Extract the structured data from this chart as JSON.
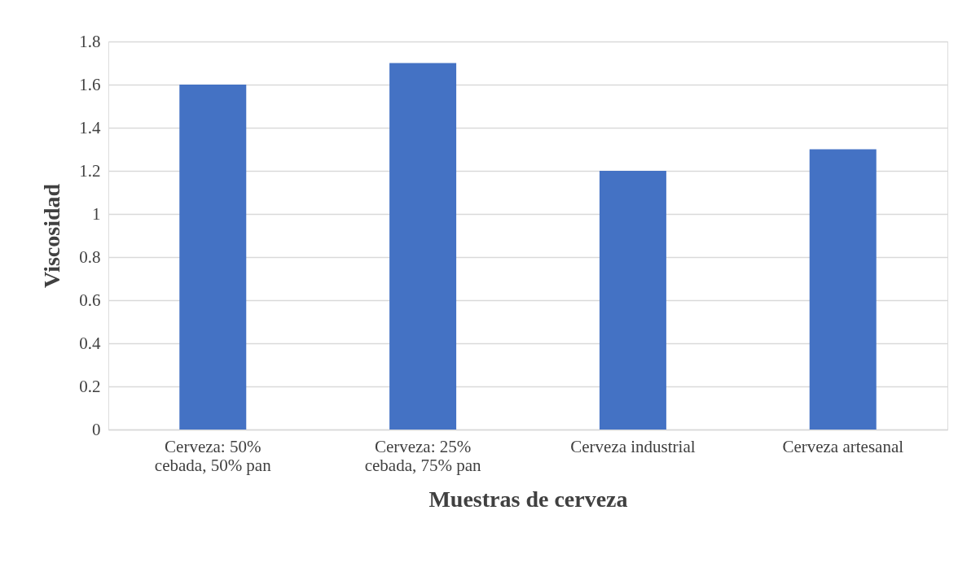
{
  "chart_data": {
    "type": "bar",
    "xlabel": "Muestras de cerveza",
    "ylabel": "Viscosidad",
    "categories": [
      "Cerveza: 50% cebada, 50% pan",
      "Cerveza: 25% cebada, 75% pan",
      "Cerveza industrial",
      "Cerveza artesanal"
    ],
    "values": [
      1.6,
      1.7,
      1.2,
      1.3
    ],
    "color": "#4472c4",
    "ylim": [
      0,
      1.8
    ],
    "yticks": [
      0,
      0.2,
      0.4,
      0.6,
      0.8,
      1,
      1.2,
      1.4,
      1.6,
      1.8
    ],
    "grid": "y"
  }
}
